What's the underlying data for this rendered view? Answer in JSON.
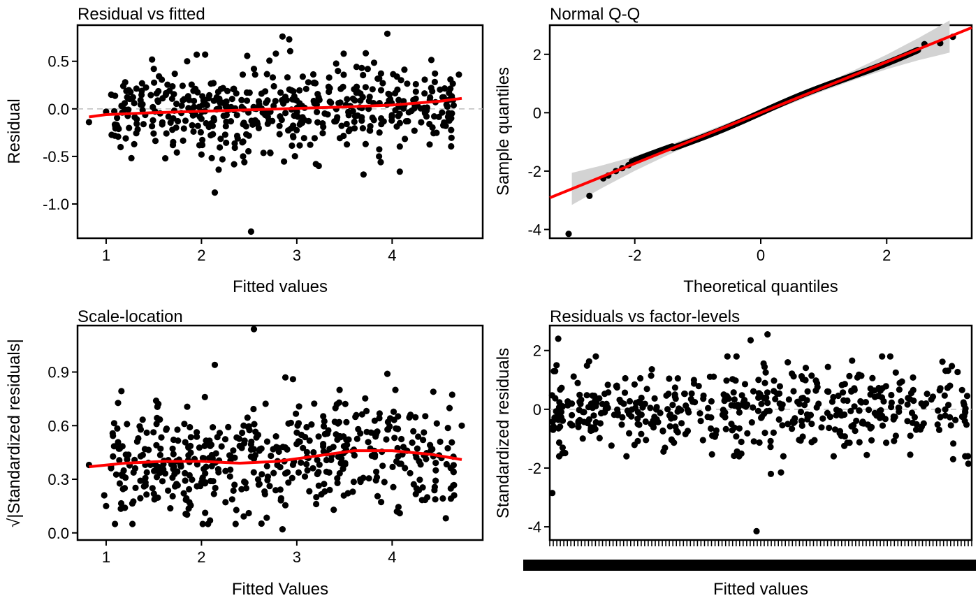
{
  "colors": {
    "points": "#000000",
    "smooth": "#ff0000",
    "band": "#d3d3d3",
    "refline": "#bdbdbd",
    "background": "#ffffff"
  },
  "chart_data": [
    {
      "id": "rvf",
      "type": "scatter",
      "title": "Residual vs fitted",
      "xlabel": "Fitted values",
      "ylabel": "Residual",
      "xlim": [
        0.7,
        4.95
      ],
      "ylim": [
        -1.36,
        0.88
      ],
      "xticks": [
        1,
        2,
        3,
        4
      ],
      "yticks": [
        -1.0,
        -0.5,
        0.0,
        0.5
      ],
      "ytick_labels": [
        "-1.0",
        "-0.5",
        "0.0",
        "0.5"
      ],
      "reference_line": {
        "y": 0,
        "style": "dashed"
      },
      "smooth": {
        "x": [
          0.82,
          1.0,
          1.5,
          2.0,
          2.5,
          3.0,
          3.5,
          4.0,
          4.5,
          4.73
        ],
        "y": [
          -0.085,
          -0.06,
          -0.04,
          -0.025,
          -0.01,
          0.005,
          0.02,
          0.04,
          0.08,
          0.11
        ]
      },
      "points_shown": 500,
      "points": {
        "x": [
          0.82,
          1.0,
          1.18,
          1.2,
          1.24,
          1.5,
          1.62,
          1.7,
          1.85,
          1.95,
          2.0,
          2.14,
          2.22,
          2.45,
          2.52,
          2.55,
          2.72,
          2.78,
          2.85,
          2.92,
          3.2,
          3.23,
          3.7,
          3.88,
          3.95,
          4.08,
          4.7
        ],
        "y": [
          -0.14,
          -0.03,
          0.24,
          0.28,
          -0.2,
          0.42,
          -0.52,
          -0.38,
          0.5,
          0.57,
          -0.48,
          -0.88,
          -0.53,
          -0.56,
          -1.29,
          0.42,
          -0.46,
          0.58,
          0.76,
          0.73,
          -0.58,
          -0.6,
          -0.69,
          -0.56,
          0.79,
          -0.66,
          0.36
        ]
      }
    },
    {
      "id": "qq",
      "type": "scatter",
      "title": "Normal Q-Q",
      "xlabel": "Theoretical quantiles",
      "ylabel": "Sample quantiles",
      "xlim": [
        -3.35,
        3.35
      ],
      "ylim": [
        -4.3,
        3.0
      ],
      "xticks": [
        -2,
        0,
        2
      ],
      "yticks": [
        -4,
        -2,
        0,
        2
      ],
      "ytick_labels": [
        "-4",
        "-2",
        "0",
        "2"
      ],
      "reference_line": {
        "intercept": 0.0,
        "slope": 0.87
      },
      "band_half_width": {
        "x": [
          -3.0,
          -2.5,
          -2.0,
          -1.5,
          -1.0,
          0.0,
          1.0,
          1.5,
          2.0,
          2.5,
          3.0
        ],
        "w": [
          0.55,
          0.38,
          0.25,
          0.17,
          0.12,
          0.09,
          0.12,
          0.17,
          0.25,
          0.38,
          0.55
        ]
      },
      "points_shown": 500,
      "points": {
        "x": [
          -3.05,
          -2.72,
          -2.5,
          -2.42,
          -2.3,
          -2.2,
          -2.1,
          2.6,
          2.85,
          3.05
        ],
        "y": [
          -4.15,
          -2.85,
          -2.25,
          -2.15,
          -2.0,
          -1.9,
          -1.8,
          2.35,
          2.38,
          2.6
        ]
      }
    },
    {
      "id": "scale",
      "type": "scatter",
      "title": "Scale-location",
      "xlabel": "Fitted Values",
      "ylabel": "√|Standardized residuals|",
      "xlim": [
        0.7,
        4.95
      ],
      "ylim": [
        -0.04,
        1.16
      ],
      "xticks": [
        1,
        2,
        3,
        4
      ],
      "yticks": [
        0.0,
        0.3,
        0.6,
        0.9
      ],
      "ytick_labels": [
        "0.0",
        "0.3",
        "0.6",
        "0.9"
      ],
      "smooth": {
        "x": [
          0.82,
          1.2,
          1.6,
          2.0,
          2.4,
          2.8,
          3.2,
          3.6,
          4.0,
          4.4,
          4.73
        ],
        "y": [
          0.37,
          0.39,
          0.4,
          0.4,
          0.39,
          0.4,
          0.43,
          0.46,
          0.46,
          0.44,
          0.41
        ]
      },
      "points_shown": 500,
      "points": {
        "x": [
          0.82,
          0.98,
          1.0,
          2.14,
          2.55,
          2.85,
          2.88,
          2.96,
          3.95,
          4.05,
          4.08,
          4.65,
          4.73
        ],
        "y": [
          0.38,
          0.21,
          0.15,
          0.94,
          1.14,
          0.02,
          0.87,
          0.86,
          0.89,
          0.12,
          0.11,
          0.21,
          0.6
        ]
      }
    },
    {
      "id": "factor",
      "type": "scatter",
      "title": "Residuals vs factor-levels",
      "xlabel": "Fitted values",
      "ylabel": "Standardized residuals",
      "xlim": [
        0,
        500
      ],
      "ylim": [
        -4.45,
        2.85
      ],
      "yticks": [
        -4,
        -2,
        0,
        2
      ],
      "ytick_labels": [
        "-4",
        "-2",
        "0",
        "2"
      ],
      "reference_line": {
        "y": 0,
        "style": "dashed"
      },
      "category_count": 500,
      "points_shown": 500,
      "points": {
        "x": [
          3,
          10,
          8,
          15,
          245,
          238,
          258,
          262,
          274,
          282,
          478,
          496
        ],
        "y": [
          -2.85,
          2.4,
          1.5,
          -1.5,
          -4.15,
          2.35,
          2.55,
          -2.2,
          -2.15,
          1.6,
          -1.7,
          -1.85
        ]
      }
    }
  ]
}
